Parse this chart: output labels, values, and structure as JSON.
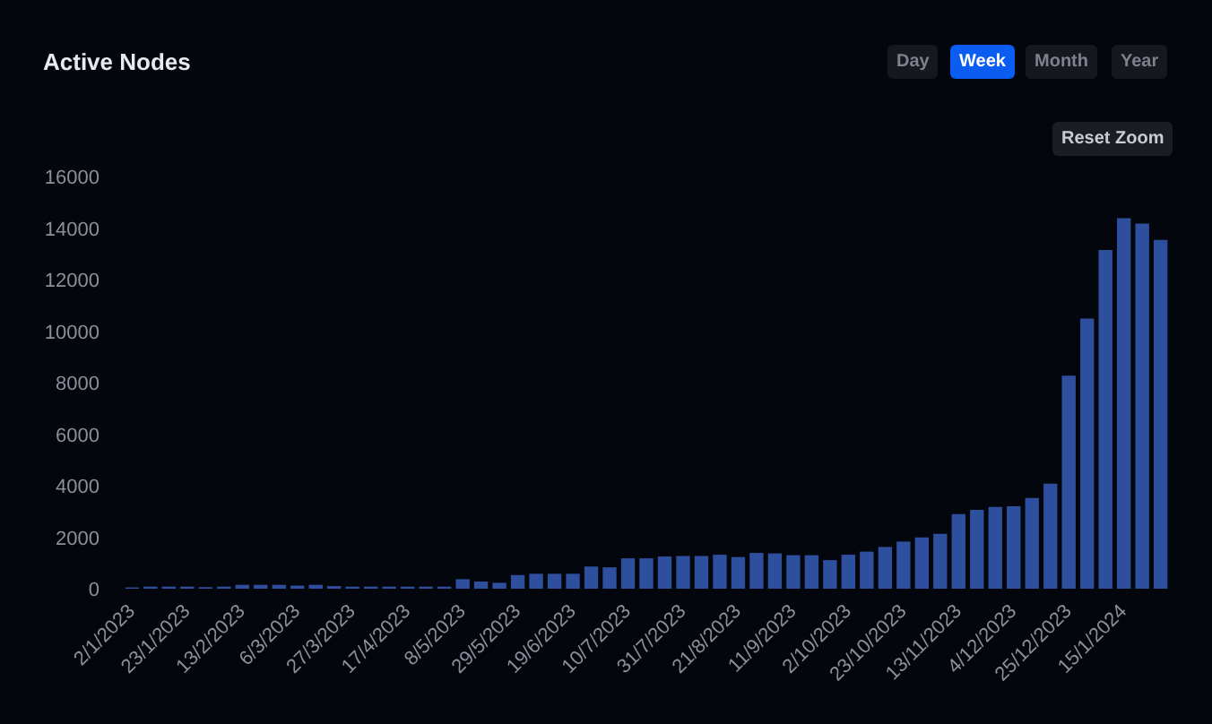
{
  "chart_data": {
    "type": "bar",
    "title": "Active Nodes",
    "categories": [
      "2/1/2023",
      null,
      null,
      "23/1/2023",
      null,
      null,
      "13/2/2023",
      null,
      null,
      "6/3/2023",
      null,
      null,
      "27/3/2023",
      null,
      null,
      "17/4/2023",
      null,
      null,
      "8/5/2023",
      null,
      null,
      "29/5/2023",
      null,
      null,
      "19/6/2023",
      null,
      null,
      "10/7/2023",
      null,
      null,
      "31/7/2023",
      null,
      null,
      "21/8/2023",
      null,
      null,
      "11/9/2023",
      null,
      null,
      "2/10/2023",
      null,
      null,
      "23/10/2023",
      null,
      null,
      "13/11/2023",
      null,
      null,
      "4/12/2023",
      null,
      null,
      "25/12/2023",
      null,
      null,
      "15/1/2024",
      null,
      null
    ],
    "values": [
      50,
      80,
      80,
      80,
      60,
      80,
      150,
      150,
      150,
      120,
      150,
      100,
      80,
      80,
      80,
      80,
      80,
      80,
      370,
      280,
      230,
      530,
      580,
      580,
      580,
      860,
      830,
      1180,
      1180,
      1250,
      1270,
      1270,
      1320,
      1230,
      1390,
      1370,
      1300,
      1300,
      1110,
      1320,
      1440,
      1620,
      1830,
      1990,
      2130,
      2900,
      3060,
      3170,
      3200,
      3520,
      4080,
      8270,
      10490,
      13150,
      14380,
      14170,
      13540
    ],
    "color": "#2d4f9e",
    "ylim": [
      0,
      16000
    ],
    "yticks": [
      0,
      2000,
      4000,
      6000,
      8000,
      10000,
      12000,
      14000,
      16000
    ],
    "grid": false,
    "annotations": [
      "Day",
      "Week",
      "Month",
      "Year",
      "Reset Zoom"
    ]
  }
}
